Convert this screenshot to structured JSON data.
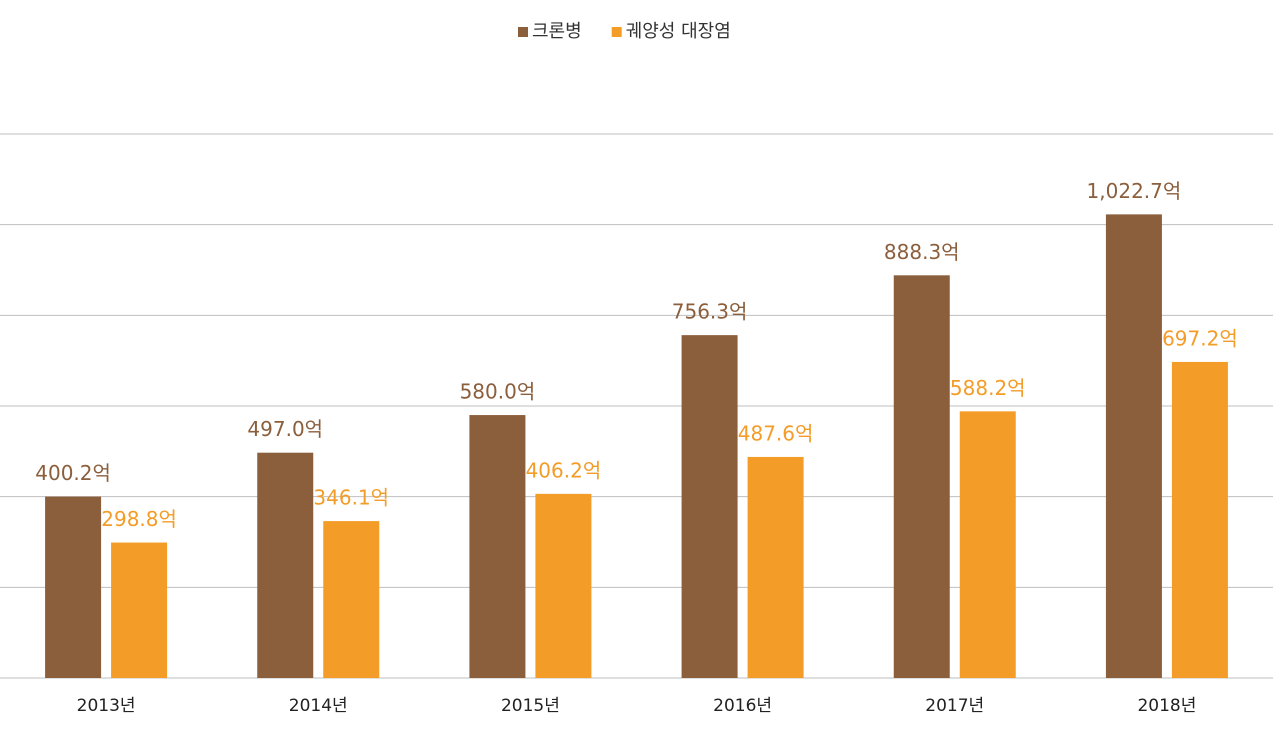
{
  "chart_data": {
    "type": "bar",
    "categories": [
      "2013년",
      "2014년",
      "2015년",
      "2016년",
      "2017년",
      "2018년"
    ],
    "series": [
      {
        "name": "크론병",
        "color": "#8b5e3c",
        "values": [
          400.2,
          497.0,
          580.0,
          756.3,
          888.3,
          1022.7
        ],
        "value_labels": [
          "400.2억",
          "497.0억",
          "580.0억",
          "756.3억",
          "888.3억",
          "1,022.7억"
        ]
      },
      {
        "name": "궤양성 대장염",
        "color": "#f39c27",
        "values": [
          298.8,
          346.1,
          406.2,
          487.6,
          588.2,
          697.2
        ],
        "value_labels": [
          "298.8억",
          "346.1억",
          "406.2억",
          "487.6억",
          "588.2억",
          "697.2억"
        ]
      }
    ],
    "ylim": [
      0,
      1200
    ],
    "yticks": [
      0,
      200,
      400,
      600,
      800,
      1000,
      1200
    ],
    "grid": true
  }
}
